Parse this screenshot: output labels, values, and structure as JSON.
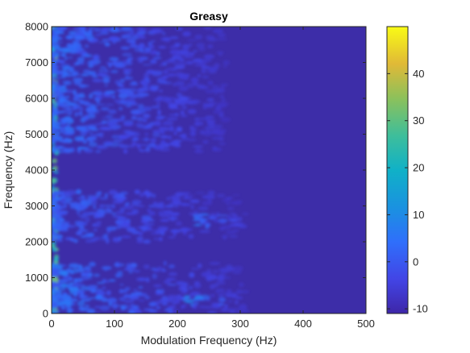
{
  "chart_data": {
    "type": "heatmap",
    "title": "Greasy",
    "xlabel": "Modulation Frequency (Hz)",
    "ylabel": "Frequency (Hz)",
    "xlim": [
      0,
      500
    ],
    "ylim": [
      0,
      8000
    ],
    "xticks": [
      0,
      100,
      200,
      300,
      400,
      500
    ],
    "yticks": [
      0,
      1000,
      2000,
      3000,
      4000,
      5000,
      6000,
      7000,
      8000
    ],
    "colorbar": {
      "range": [
        -11,
        50
      ],
      "ticks": [
        -10,
        0,
        10,
        20,
        30,
        40
      ],
      "colormap": "parula"
    },
    "features": [
      {
        "desc": "strong low-modulation column",
        "x": [
          0,
          8
        ],
        "y": [
          0,
          8000
        ],
        "value": 30
      },
      {
        "desc": "bright low-frequency spot",
        "x": [
          0,
          6
        ],
        "y": [
          200,
          700
        ],
        "value": 42
      },
      {
        "desc": "bright band",
        "x": [
          0,
          6
        ],
        "y": [
          2300,
          2800
        ],
        "value": 36
      },
      {
        "desc": "bright band",
        "x": [
          0,
          6
        ],
        "y": [
          5800,
          6600
        ],
        "value": 32
      },
      {
        "desc": "broad modulation region",
        "x": [
          0,
          280
        ],
        "y": [
          4500,
          8000
        ],
        "value": 5
      },
      {
        "desc": "modulation streak region",
        "x": [
          0,
          300
        ],
        "y": [
          2000,
          3400
        ],
        "value": 3
      },
      {
        "desc": "low-frequency streaks",
        "x": [
          0,
          310
        ],
        "y": [
          0,
          1400
        ],
        "value": 6
      },
      {
        "desc": "streak near 250 Hz",
        "x": [
          210,
          300
        ],
        "y": [
          250,
          500
        ],
        "value": 12
      },
      {
        "desc": "streak near 250 Hz",
        "x": [
          230,
          310
        ],
        "y": [
          2400,
          2800
        ],
        "value": 6
      },
      {
        "desc": "background",
        "x": [
          0,
          500
        ],
        "y": [
          0,
          8000
        ],
        "value": -8
      }
    ]
  }
}
